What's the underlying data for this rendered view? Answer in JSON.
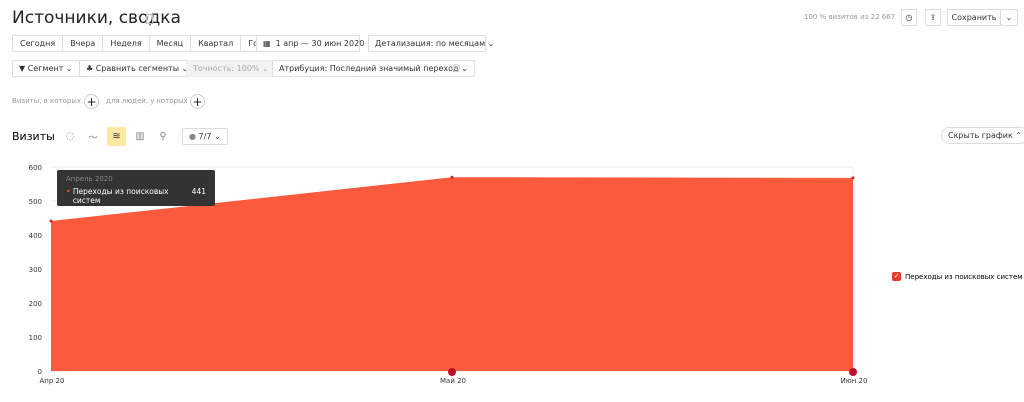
{
  "header": {
    "title": "Источники, сводка",
    "visits_share": "100 % визитов из 22 667",
    "save": "Сохранить"
  },
  "periods": [
    "Сегодня",
    "Вчера",
    "Неделя",
    "Месяц",
    "Квартал",
    "Год"
  ],
  "date_range": "1 апр — 30 июн 2020",
  "detail": "Детализация: по месяцам",
  "segment": "Сегмент",
  "compare": "Сравнить сегменты",
  "accuracy": "Точность: 100%",
  "attribution": "Атрибуция: Последний значимый переход",
  "filters": {
    "visits": "Визиты, в которых",
    "people": "для людей, у которых"
  },
  "chart_section": {
    "title": "Визиты",
    "counter": "7/7",
    "hide": "Скрыть график"
  },
  "tooltip": {
    "period": "Апрель 2020",
    "series": "Переходы из поисковых систем",
    "value": "441"
  },
  "chart_data": {
    "type": "area",
    "categories": [
      "Апр 20",
      "Май 20",
      "Июн 20"
    ],
    "series": [
      {
        "name": "Переходы из поисковых систем",
        "values": [
          441,
          570,
          568
        ],
        "color": "#fc5a3d"
      }
    ],
    "ylim": [
      0,
      600
    ],
    "yticks": [
      "0",
      "100",
      "200",
      "300",
      "400",
      "500",
      "600"
    ],
    "legend": "right",
    "grid": true
  }
}
